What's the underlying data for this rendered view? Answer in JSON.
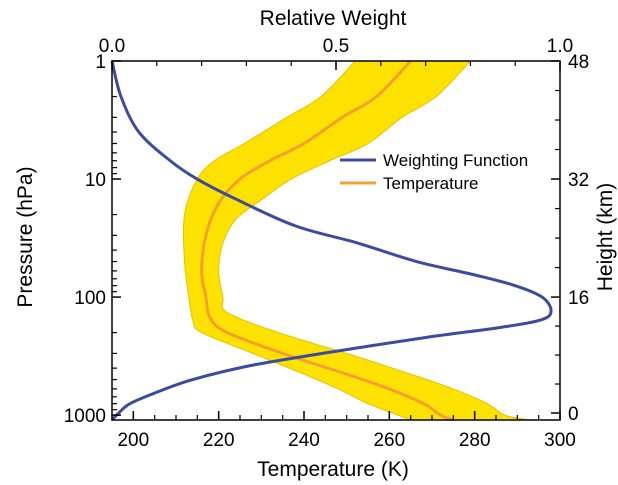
{
  "chart_data": {
    "type": "line",
    "bottom_axis": {
      "label": "Temperature (K)",
      "range": [
        195,
        300
      ],
      "ticks": [
        200,
        220,
        240,
        260,
        280,
        300
      ],
      "tick_labels": [
        "200",
        "220",
        "240",
        "260",
        "280",
        "300"
      ]
    },
    "top_axis": {
      "label": "Relative Weight",
      "range": [
        0.0,
        1.0
      ],
      "ticks": [
        0.0,
        0.5,
        1.0
      ],
      "tick_labels": [
        "0.0",
        "0.5",
        "1.0"
      ]
    },
    "left_axis": {
      "label": "Pressure (hPa)",
      "scale": "log",
      "range": [
        1,
        1100
      ],
      "ticks": [
        1,
        10,
        100,
        1000
      ],
      "tick_labels": [
        "1",
        "10",
        "100",
        "1000"
      ]
    },
    "right_axis": {
      "label": "Height (km)",
      "ticks": [
        48,
        32,
        16,
        0
      ],
      "tick_labels": [
        "48",
        "32",
        "16",
        "0"
      ]
    },
    "legend_position": "upper-right",
    "series": [
      {
        "name": "Weighting Function",
        "axis": "top",
        "color": "#3a4ba0",
        "points": [
          [
            0.0,
            1
          ],
          [
            0.02,
            2
          ],
          [
            0.06,
            4
          ],
          [
            0.13,
            7
          ],
          [
            0.19,
            10
          ],
          [
            0.28,
            15
          ],
          [
            0.41,
            25
          ],
          [
            0.55,
            35
          ],
          [
            0.68,
            50
          ],
          [
            0.81,
            65
          ],
          [
            0.9,
            80
          ],
          [
            0.96,
            100
          ],
          [
            0.98,
            130
          ],
          [
            0.96,
            155
          ],
          [
            0.87,
            180
          ],
          [
            0.7,
            220
          ],
          [
            0.47,
            300
          ],
          [
            0.31,
            380
          ],
          [
            0.18,
            500
          ],
          [
            0.1,
            640
          ],
          [
            0.04,
            800
          ],
          [
            0.015,
            960
          ],
          [
            0.0,
            1100
          ]
        ]
      },
      {
        "name": "Temperature",
        "axis": "bottom",
        "color": "#f4a030",
        "band_color": "#fde200",
        "band_edge_color": "#e8c000",
        "points": [
          [
            265,
            1
          ],
          [
            257,
            2
          ],
          [
            249,
            3
          ],
          [
            240,
            5
          ],
          [
            232,
            7
          ],
          [
            225,
            10
          ],
          [
            220,
            16
          ],
          [
            217,
            30
          ],
          [
            216,
            60
          ],
          [
            217,
            100
          ],
          [
            218,
            150
          ],
          [
            222,
            200
          ],
          [
            235,
            300
          ],
          [
            250,
            450
          ],
          [
            260,
            600
          ],
          [
            268,
            800
          ],
          [
            272,
            1000
          ],
          [
            275,
            1100
          ]
        ],
        "band_lower": [
          [
            252,
            1
          ],
          [
            244,
            2
          ],
          [
            236,
            3
          ],
          [
            226,
            5
          ],
          [
            219,
            7
          ],
          [
            215,
            10
          ],
          [
            212,
            20
          ],
          [
            212,
            50
          ],
          [
            213,
            100
          ],
          [
            214,
            160
          ],
          [
            216,
            200
          ],
          [
            228,
            300
          ],
          [
            240,
            450
          ],
          [
            248,
            600
          ],
          [
            255,
            800
          ],
          [
            262,
            1000
          ],
          [
            265,
            1100
          ]
        ],
        "band_upper": [
          [
            279,
            1
          ],
          [
            271,
            2
          ],
          [
            263,
            3
          ],
          [
            255,
            5
          ],
          [
            246,
            7
          ],
          [
            237,
            10
          ],
          [
            230,
            15
          ],
          [
            224,
            22
          ],
          [
            221,
            35
          ],
          [
            220,
            60
          ],
          [
            221,
            100
          ],
          [
            222,
            135
          ],
          [
            234,
            200
          ],
          [
            250,
            300
          ],
          [
            265,
            450
          ],
          [
            275,
            600
          ],
          [
            283,
            800
          ],
          [
            287,
            1000
          ],
          [
            293,
            1100
          ]
        ]
      }
    ]
  }
}
